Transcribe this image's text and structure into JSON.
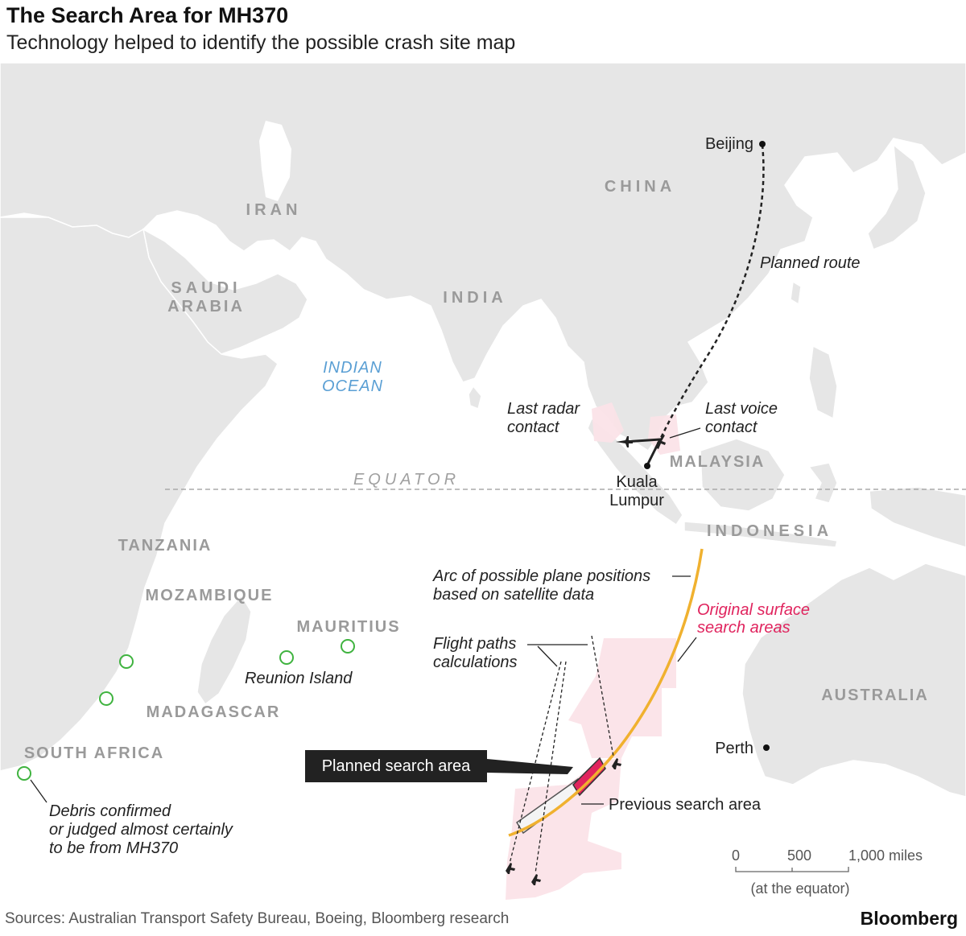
{
  "header": {
    "title": "The Search Area for MH370",
    "subtitle": "Technology helped to identify the possible crash site map"
  },
  "map": {
    "countries": [
      "IRAN",
      "CHINA",
      "SAUDI",
      "ARABIA",
      "INDIA",
      "MALAYSIA",
      "INDONESIA",
      "TANZANIA",
      "MOZAMBIQUE",
      "MAURITIUS",
      "MADAGASCAR",
      "SOUTH AFRICA",
      "AUSTRALIA"
    ],
    "ocean": [
      "INDIAN",
      "OCEAN"
    ],
    "equator_label": "EQUATOR",
    "cities": {
      "beijing": "Beijing",
      "kuala_lumpur_1": "Kuala",
      "kuala_lumpur_2": "Lumpur",
      "perth": "Perth"
    },
    "annotations": {
      "planned_route": "Planned route",
      "last_radar_1": "Last radar",
      "last_radar_2": "contact",
      "last_voice_1": "Last voice",
      "last_voice_2": "contact",
      "arc_1": "Arc of possible plane positions",
      "arc_2": "based on satellite data",
      "original_1": "Original surface",
      "original_2": "search areas",
      "flight_paths_1": "Flight paths",
      "flight_paths_2": "calculations",
      "planned_search_area": "Planned search area",
      "previous_search_area": "Previous search area",
      "reunion": "Reunion Island",
      "debris_1": "Debris confirmed",
      "debris_2": "or judged almost certainly",
      "debris_3": "to be from MH370"
    },
    "scale": {
      "v0": "0",
      "v500": "500",
      "v1000": "1,000 miles",
      "note": "(at the equator)"
    },
    "colors": {
      "land": "#e6e6e6",
      "water": "#ffffff",
      "search_zone": "#fbe3e8",
      "arc": "#f0b12f",
      "planned_area": "#e0245e",
      "debris": "#3fb33f",
      "ocean_label": "#5a9fd4"
    }
  },
  "footer": {
    "sources": "Sources: Australian Transport Safety Bureau, Boeing, Bloomberg research",
    "logo": "Bloomberg"
  }
}
